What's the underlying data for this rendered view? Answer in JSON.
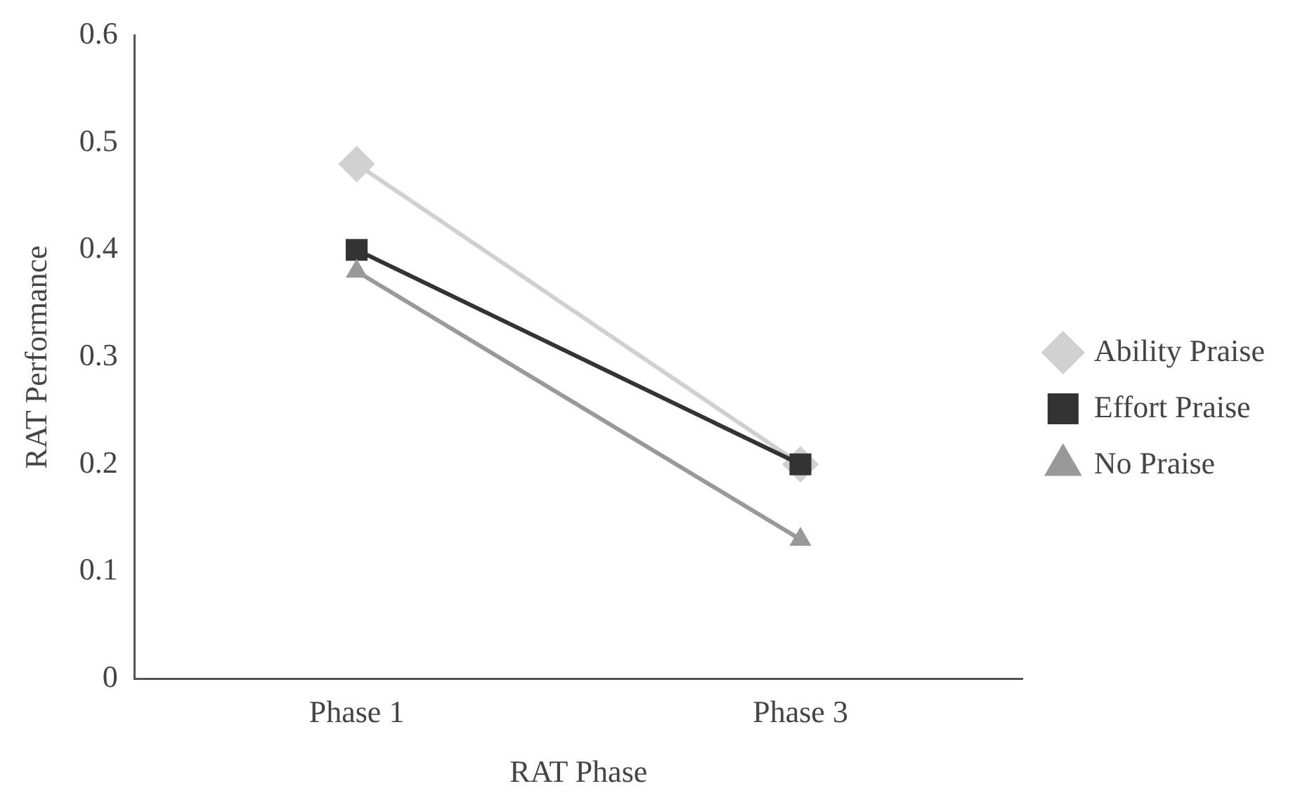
{
  "chart_data": {
    "type": "line",
    "xlabel": "RAT Phase",
    "ylabel": "RAT Performance",
    "categories": [
      "Phase 1",
      "Phase 3"
    ],
    "series": [
      {
        "name": "Ability Praise",
        "color": "#d0d0d0",
        "marker": "diamond",
        "values": [
          0.48,
          0.2
        ]
      },
      {
        "name": "Effort Praise",
        "color": "#333333",
        "marker": "square",
        "values": [
          0.4,
          0.2
        ]
      },
      {
        "name": "No Praise",
        "color": "#999999",
        "marker": "triangle",
        "values": [
          0.38,
          0.13
        ]
      }
    ],
    "ylim": [
      0,
      0.6
    ],
    "yticks": [
      0,
      0.1,
      0.2,
      0.3,
      0.4,
      0.5,
      0.6
    ],
    "grid": false,
    "legend": "right"
  }
}
